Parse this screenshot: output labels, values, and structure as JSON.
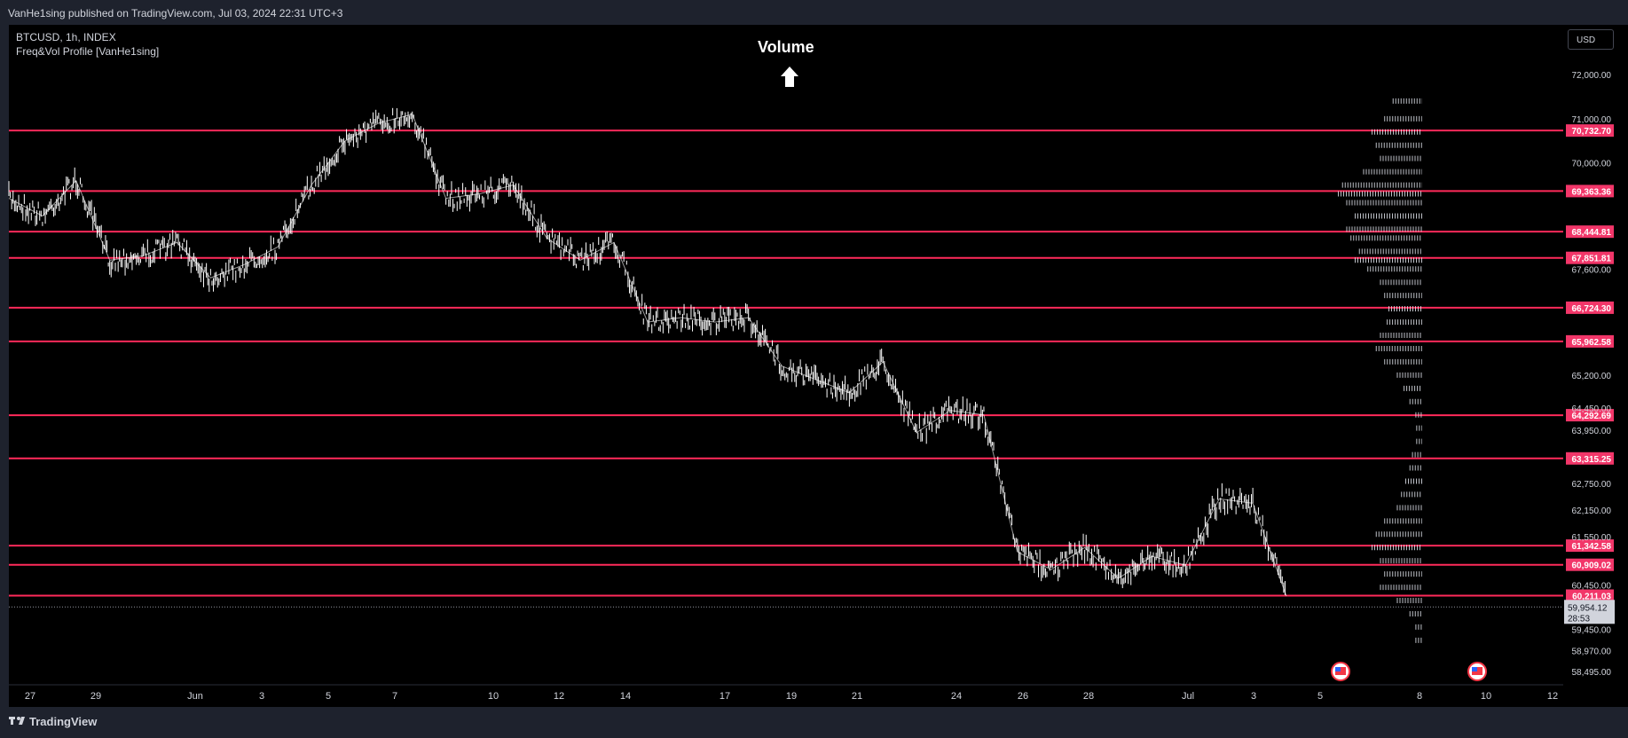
{
  "header": {
    "publisher": "VanHe1sing published on TradingView.com, Jul 03, 2024 22:31 UTC+3"
  },
  "legend": {
    "symbol": "BTCUSD, 1h, INDEX",
    "indicator": "Freq&Vol Profile [VanHe1sing]"
  },
  "annotation": {
    "title": "Volume"
  },
  "currency_button": "USD",
  "footer": {
    "brand": "TradingView"
  },
  "colors": {
    "background": "#000000",
    "candle": "#ffffff",
    "level_line": "#ff2a5a",
    "level_label_bg": "#f23669",
    "profile": "#e0e3eb"
  },
  "chart_data": {
    "type": "line",
    "title": "BTCUSD, 1h, INDEX",
    "x_ticks": [
      "27",
      "29",
      "Jun",
      "3",
      "5",
      "7",
      "10",
      "12",
      "14",
      "17",
      "19",
      "21",
      "24",
      "26",
      "28",
      "Jul",
      "3",
      "5",
      "8",
      "10",
      "12"
    ],
    "y_ticks": [
      "72,000.00",
      "71,000.00",
      "70,000.00",
      "67,600.00",
      "65,200.00",
      "64,450.00",
      "63,950.00",
      "62,750.00",
      "62,150.00",
      "61,550.00",
      "60,450.00",
      "59,450.00",
      "58,970.00",
      "58,495.00"
    ],
    "ylim": [
      58300,
      72600
    ],
    "levels": [
      {
        "value": 70732.7,
        "label": "70,732.70"
      },
      {
        "value": 69363.36,
        "label": "69,363.36"
      },
      {
        "value": 68444.81,
        "label": "68,444.81"
      },
      {
        "value": 67851.81,
        "label": "67,851.81"
      },
      {
        "value": 66724.3,
        "label": "66,724.30"
      },
      {
        "value": 65962.58,
        "label": "65,962.58"
      },
      {
        "value": 64292.69,
        "label": "64,292.69"
      },
      {
        "value": 63315.25,
        "label": "63,315.25"
      },
      {
        "value": 61342.58,
        "label": "61,342.58"
      },
      {
        "value": 60909.02,
        "label": "60,909.02"
      },
      {
        "value": 60211.03,
        "label": "60,211.03"
      }
    ],
    "last_price": {
      "value": 59954.12,
      "label": "59,954.12",
      "countdown": "28:53"
    },
    "price_series": {
      "name": "BTCUSD",
      "x": [
        "May 26",
        "May 27",
        "May 28",
        "May 29",
        "May 30",
        "May 31",
        "Jun 1",
        "Jun 2",
        "Jun 3",
        "Jun 4",
        "Jun 5",
        "Jun 6",
        "Jun 7",
        "Jun 8",
        "Jun 9",
        "Jun 10",
        "Jun 11",
        "Jun 12",
        "Jun 13",
        "Jun 14",
        "Jun 15",
        "Jun 16",
        "Jun 17",
        "Jun 18",
        "Jun 19",
        "Jun 20",
        "Jun 21",
        "Jun 22",
        "Jun 23",
        "Jun 24",
        "Jun 25",
        "Jun 26",
        "Jun 27",
        "Jun 28",
        "Jun 29",
        "Jun 30",
        "Jul 1",
        "Jul 2",
        "Jul 3"
      ],
      "y": [
        69200,
        68800,
        69600,
        67800,
        67900,
        68200,
        67400,
        67700,
        68100,
        69500,
        70500,
        70900,
        71100,
        69200,
        69300,
        69500,
        68300,
        67800,
        68200,
        66400,
        66500,
        66400,
        66500,
        65400,
        65100,
        64800,
        65500,
        63900,
        64400,
        64300,
        61200,
        60800,
        61300,
        60600,
        61100,
        60900,
        62400,
        62300,
        60200
      ]
    },
    "profile": [
      {
        "price": 71400,
        "w": 0.35
      },
      {
        "price": 71000,
        "w": 0.45
      },
      {
        "price": 70700,
        "w": 0.6
      },
      {
        "price": 70400,
        "w": 0.55
      },
      {
        "price": 70100,
        "w": 0.5
      },
      {
        "price": 69800,
        "w": 0.7
      },
      {
        "price": 69500,
        "w": 0.95
      },
      {
        "price": 69300,
        "w": 1.0
      },
      {
        "price": 69100,
        "w": 0.9
      },
      {
        "price": 68800,
        "w": 0.8
      },
      {
        "price": 68500,
        "w": 0.9
      },
      {
        "price": 68300,
        "w": 0.85
      },
      {
        "price": 68000,
        "w": 0.75
      },
      {
        "price": 67800,
        "w": 0.8
      },
      {
        "price": 67600,
        "w": 0.65
      },
      {
        "price": 67300,
        "w": 0.5
      },
      {
        "price": 67000,
        "w": 0.45
      },
      {
        "price": 66700,
        "w": 0.4
      },
      {
        "price": 66400,
        "w": 0.42
      },
      {
        "price": 66100,
        "w": 0.5
      },
      {
        "price": 65800,
        "w": 0.55
      },
      {
        "price": 65500,
        "w": 0.45
      },
      {
        "price": 65200,
        "w": 0.3
      },
      {
        "price": 64900,
        "w": 0.22
      },
      {
        "price": 64600,
        "w": 0.15
      },
      {
        "price": 64300,
        "w": 0.08
      },
      {
        "price": 64000,
        "w": 0.07
      },
      {
        "price": 63700,
        "w": 0.07
      },
      {
        "price": 63400,
        "w": 0.12
      },
      {
        "price": 63100,
        "w": 0.15
      },
      {
        "price": 62800,
        "w": 0.2
      },
      {
        "price": 62500,
        "w": 0.25
      },
      {
        "price": 62200,
        "w": 0.3
      },
      {
        "price": 61900,
        "w": 0.45
      },
      {
        "price": 61600,
        "w": 0.55
      },
      {
        "price": 61300,
        "w": 0.6
      },
      {
        "price": 61000,
        "w": 0.5
      },
      {
        "price": 60700,
        "w": 0.45
      },
      {
        "price": 60400,
        "w": 0.5
      },
      {
        "price": 60100,
        "w": 0.3
      },
      {
        "price": 59800,
        "w": 0.15
      },
      {
        "price": 59500,
        "w": 0.08
      },
      {
        "price": 59200,
        "w": 0.08
      }
    ]
  }
}
